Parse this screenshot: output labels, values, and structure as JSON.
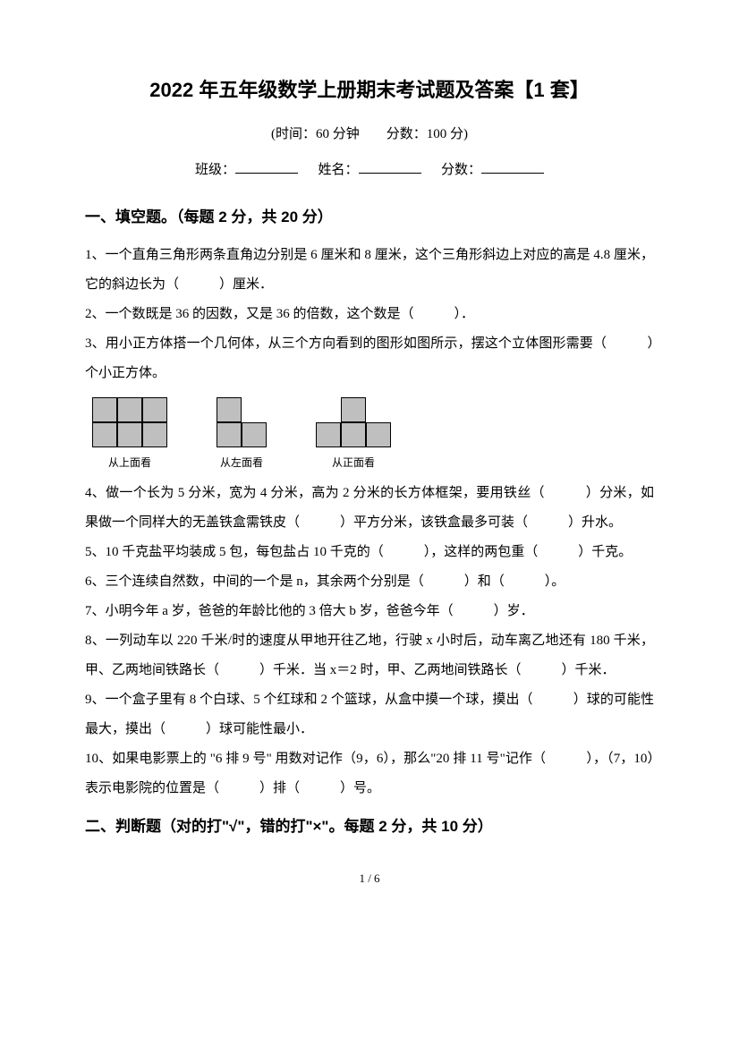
{
  "title": "2022 年五年级数学上册期末考试题及答案【1 套】",
  "subtitle": "(时间：60 分钟　　分数：100 分)",
  "info": {
    "class_label": "班级：",
    "name_label": "姓名：",
    "score_label": "分数："
  },
  "section1": {
    "title": "一、填空题。（每题 2 分，共 20 分）",
    "q1": "1、一个直角三角形两条直角边分别是 6 厘米和 8 厘米，这个三角形斜边上对应的高是 4.8 厘米，它的斜边长为（　　　）厘米．",
    "q2": "2、一个数既是 36 的因数，又是 36 的倍数，这个数是（　　　）．",
    "q3": "3、用小正方体搭一个几何体，从三个方向看到的图形如图所示，摆这个立体图形需要（　　　）个小正方体。",
    "fig_labels": {
      "top": "从上面看",
      "left": "从左面看",
      "front": "从正面看"
    },
    "q4": "4、做一个长为 5 分米，宽为 4 分米，高为 2 分米的长方体框架，要用铁丝（　　　）分米，如果做一个同样大的无盖铁盒需铁皮（　　　）平方分米，该铁盒最多可装（　　　）升水。",
    "q5": "5、10 千克盐平均装成 5 包，每包盐占 10 千克的（　　　），这样的两包重（　　　）千克。",
    "q6": "6、三个连续自然数，中间的一个是 n，其余两个分别是（　　　）和（　　　）。",
    "q7": "7、小明今年 a 岁，爸爸的年龄比他的 3 倍大 b 岁，爸爸今年（　　　）岁．",
    "q8": "8、一列动车以 220 千米/时的速度从甲地开往乙地，行驶 x 小时后，动车离乙地还有 180 千米，甲、乙两地间铁路长（　　　）千米．当 x＝2 时，甲、乙两地间铁路长（　　　）千米．",
    "q9": "9、一个盒子里有 8 个白球、5 个红球和 2 个篮球，从盒中摸一个球，摸出（　　　）球的可能性最大，摸出（　　　）球可能性最小．",
    "q10": "10、如果电影票上的 \"6 排 9 号\" 用数对记作（9，6），那么\"20 排 11 号\"记作（　　　），（7，10）表示电影院的位置是（　　　）排（　　　）号。"
  },
  "section2": {
    "title": "二、判断题（对的打\"√\"，错的打\"×\"。每题 2 分，共 10 分）"
  },
  "page_number": "1 / 6",
  "colors": {
    "text": "#000000",
    "background": "#ffffff",
    "cell_fill": "#bfbfbf"
  }
}
